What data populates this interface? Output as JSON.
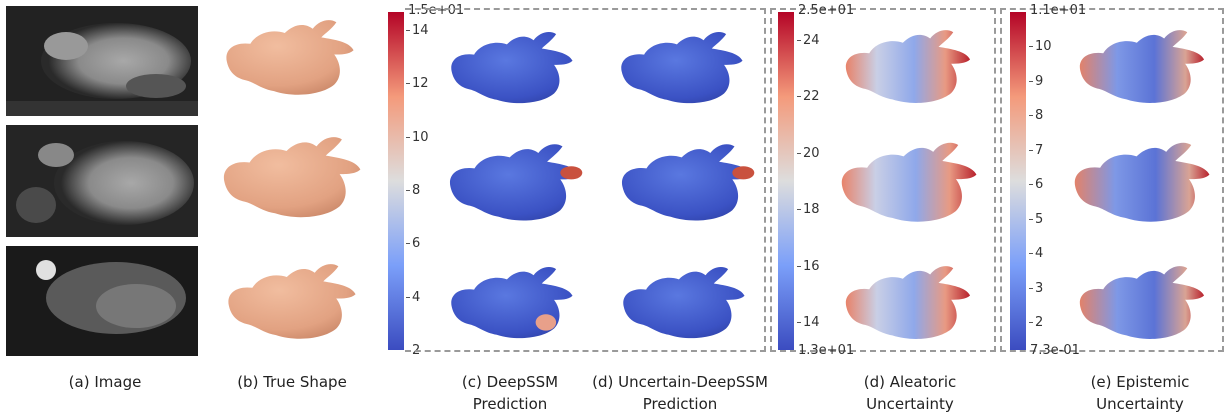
{
  "captions": {
    "image": "(a) Image",
    "true_shape": "(b) True Shape",
    "deepssm_line1": "(c) DeepSSM",
    "deepssm_line2": "Prediction",
    "uncertain_line1": "(d) Uncertain-DeepSSM",
    "uncertain_line2": "Prediction",
    "aleatoric_line1": "(d) Aleatoric",
    "aleatoric_line2": "Uncertainty",
    "epistemic_line1": "(e) Epistemic",
    "epistemic_line2": "Uncertainty"
  },
  "colorbars": {
    "prediction": {
      "top": "1.5e+01",
      "ticks": [
        "14",
        "12",
        "10",
        "8",
        "6",
        "4",
        "2"
      ]
    },
    "aleatoric": {
      "top": "2.5e+01",
      "bottom": "1.3e+01",
      "ticks": [
        "24",
        "22",
        "20",
        "18",
        "16",
        "14"
      ]
    },
    "epistemic": {
      "top": "1.1e+01",
      "bottom": "7.3e-01",
      "ticks": [
        "10",
        "9",
        "8",
        "7",
        "6",
        "5",
        "4",
        "3",
        "2"
      ]
    }
  },
  "colors": {
    "shape_skin": "#e6a887",
    "cool_blue": "#3a50c8",
    "warm_red": "#b40426",
    "neutral": "#dddddd",
    "frame_dash": "#9a9a9a"
  }
}
